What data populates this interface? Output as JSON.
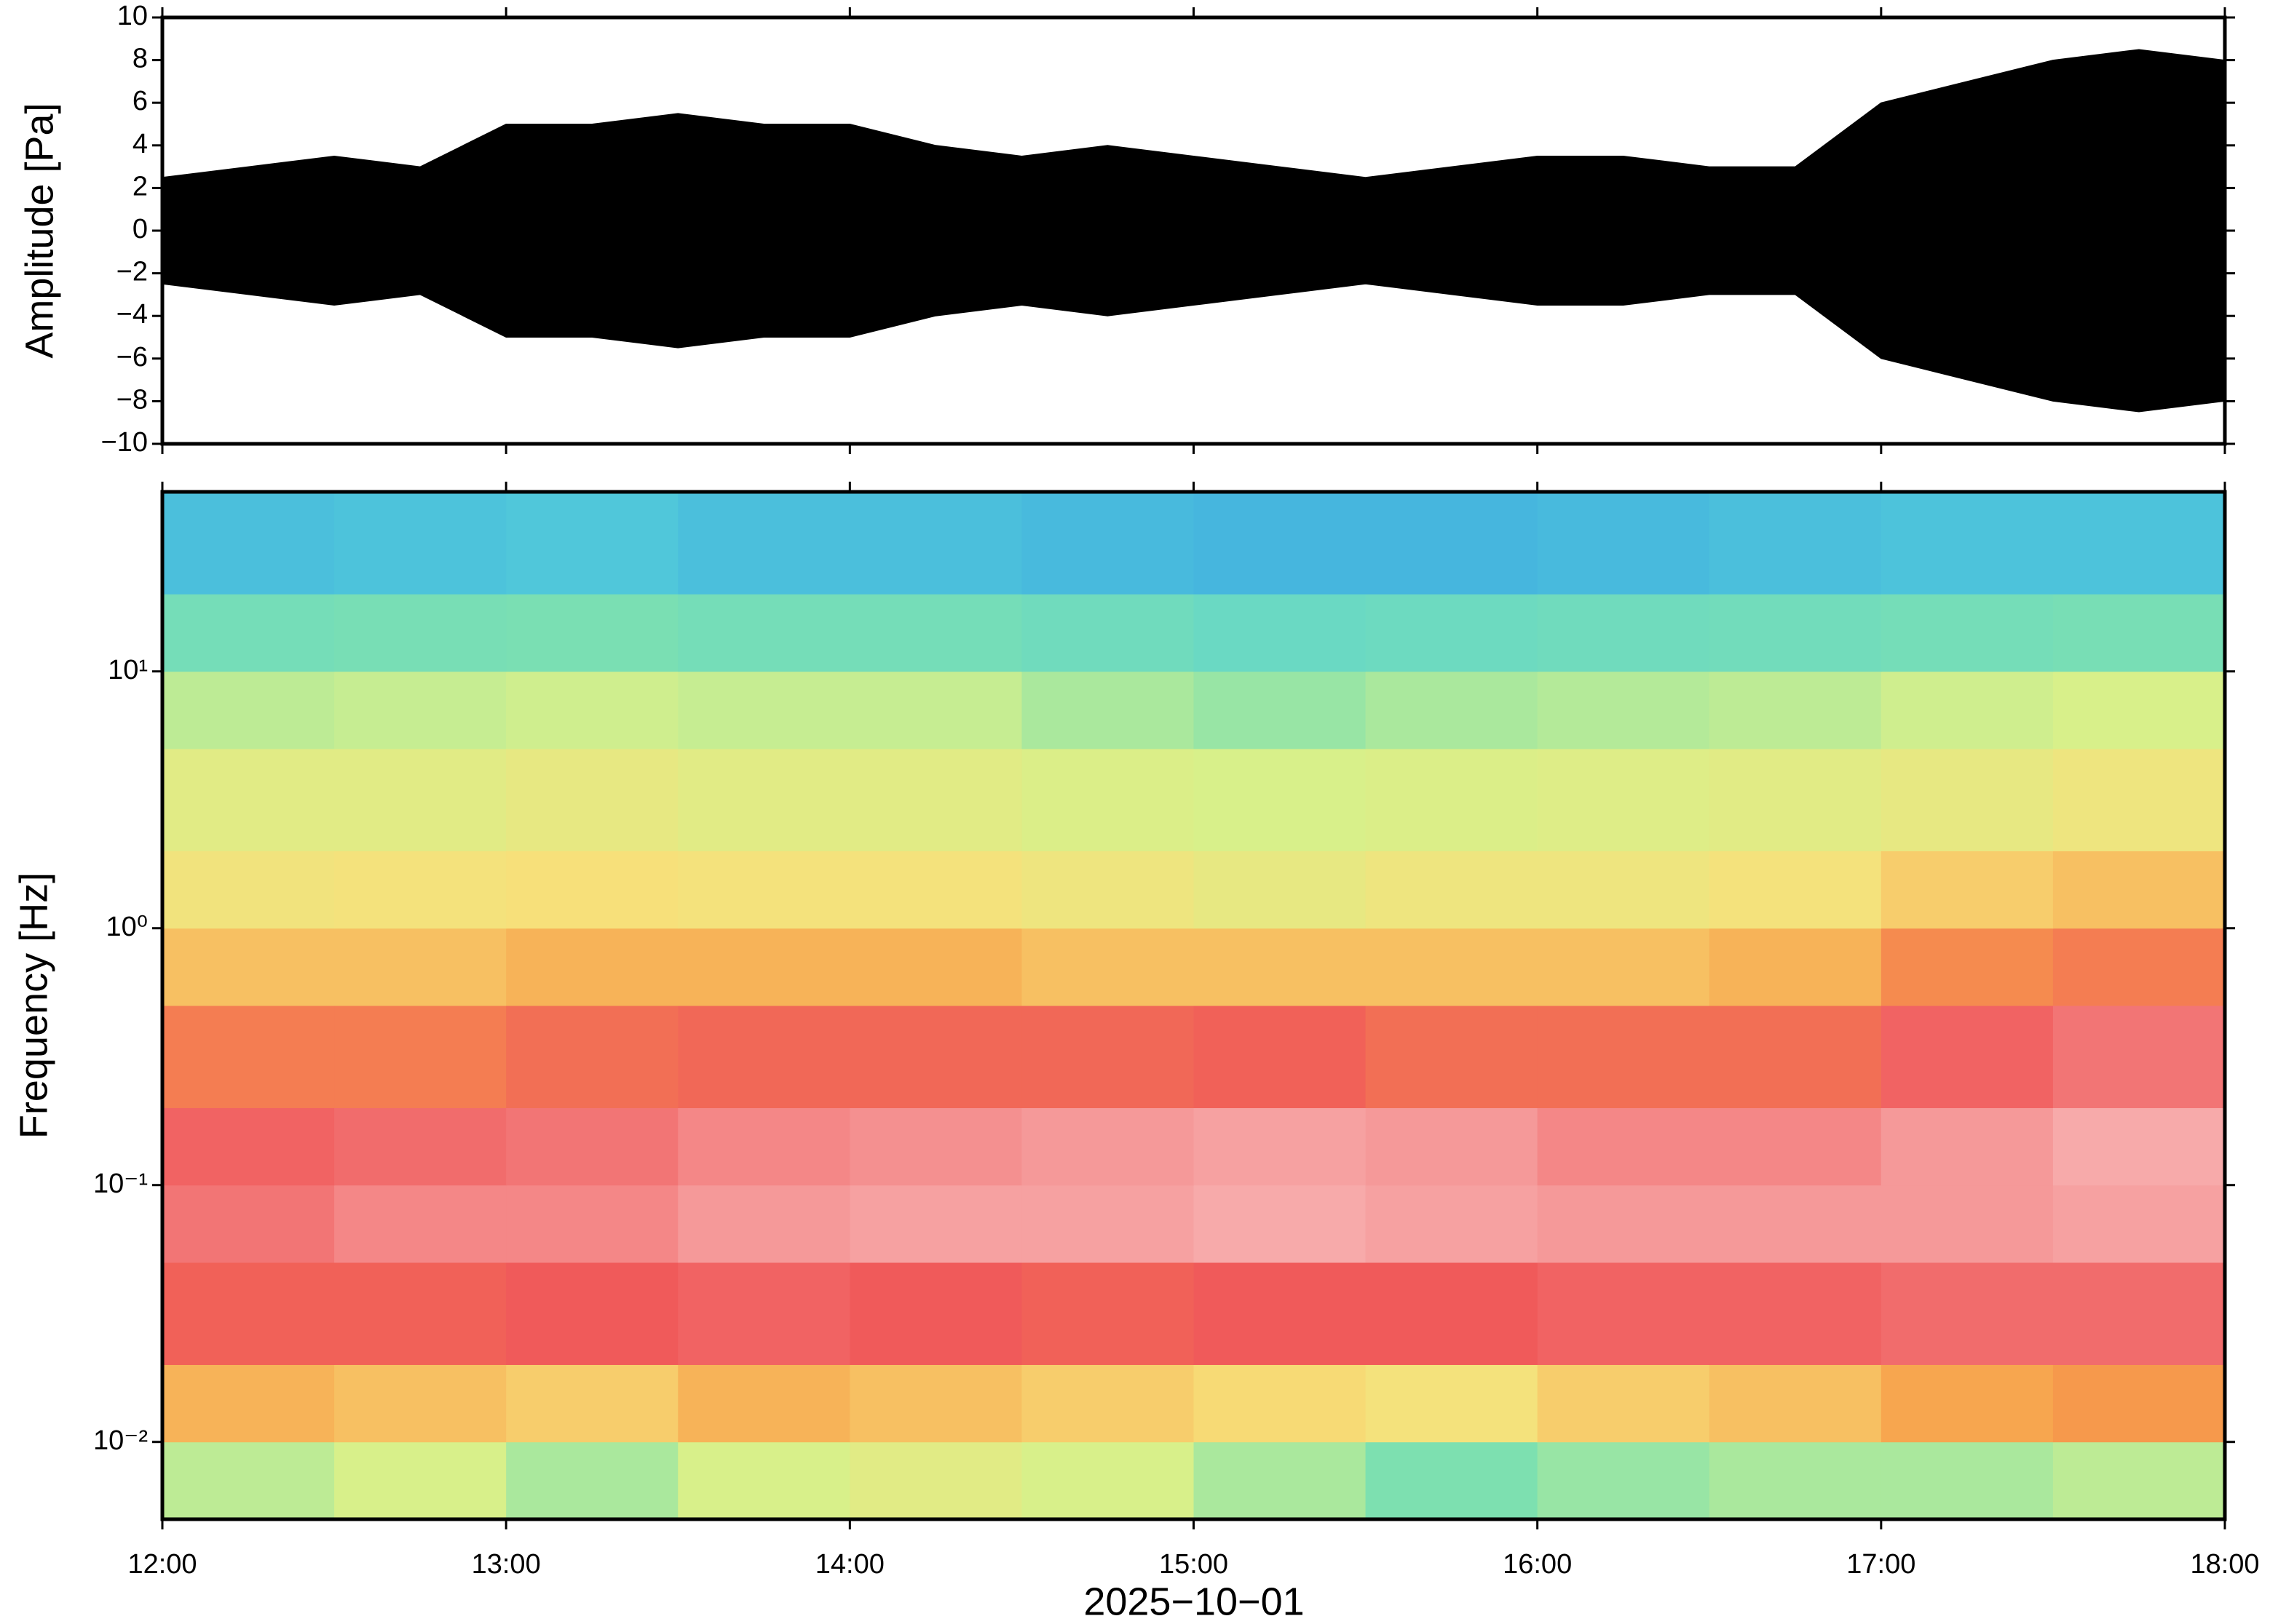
{
  "chart_data": [
    {
      "type": "envelope",
      "ylabel": "Amplitude [Pa]",
      "color": "#000000",
      "xlim": [
        12,
        18
      ],
      "xticks": [
        12,
        13,
        14,
        15,
        16,
        17,
        18
      ],
      "ylim": [
        -10,
        10
      ],
      "yticks": [
        {
          "value": -10,
          "label": "−10"
        },
        {
          "value": -8,
          "label": "−8"
        },
        {
          "value": -6,
          "label": "−6"
        },
        {
          "value": -4,
          "label": "−4"
        },
        {
          "value": -2,
          "label": "−2"
        },
        0,
        2,
        4,
        6,
        8,
        10
      ],
      "x": [
        12,
        12.25,
        12.5,
        12.75,
        13,
        13.25,
        13.5,
        13.75,
        14,
        14.25,
        14.5,
        14.75,
        15,
        15.25,
        15.5,
        15.75,
        16,
        16.25,
        16.5,
        16.75,
        17,
        17.25,
        17.5,
        17.75,
        18
      ],
      "upper": [
        2.5,
        3,
        3.5,
        3,
        5,
        5,
        5.5,
        5,
        5,
        4,
        3.5,
        4,
        3.5,
        3,
        2.5,
        3,
        3.5,
        3.5,
        3,
        3,
        6,
        7,
        8,
        8.5,
        8
      ],
      "lower": [
        -2.5,
        -3,
        -3.5,
        -3,
        -5,
        -5,
        -5.5,
        -5,
        -5,
        -4,
        -3.5,
        -4,
        -3.5,
        -3,
        -2.5,
        -3,
        -3.5,
        -3.5,
        -3,
        -3,
        -6,
        -7,
        -8,
        -8.5,
        -8
      ]
    },
    {
      "type": "heatmap",
      "ylabel": "Frequency [Hz]",
      "xlabel": "2025−10−01",
      "log_y": true,
      "xlim": [
        12,
        18
      ],
      "xticks": [
        {
          "value": 12,
          "label": "12:00"
        },
        {
          "value": 13,
          "label": "13:00"
        },
        {
          "value": 14,
          "label": "14:00"
        },
        {
          "value": 15,
          "label": "15:00"
        },
        {
          "value": 16,
          "label": "16:00"
        },
        {
          "value": 17,
          "label": "17:00"
        },
        {
          "value": 18,
          "label": "18:00"
        }
      ],
      "ylim": [
        0.005,
        50
      ],
      "yticks": [
        {
          "value": 0.01,
          "label": "10⁻²"
        },
        {
          "value": 0.1,
          "label": "10⁻¹"
        },
        {
          "value": 1,
          "label": "10⁰"
        },
        {
          "value": 10,
          "label": "10¹"
        }
      ],
      "x_edges": [
        12,
        12.5,
        13,
        13.5,
        14,
        14.5,
        15,
        15.5,
        16,
        16.5,
        17,
        17.5,
        18
      ],
      "y_edges": [
        0.005,
        0.01,
        0.02,
        0.05,
        0.1,
        0.2,
        0.5,
        1,
        2,
        5,
        10,
        20,
        50
      ],
      "zlim": [
        0,
        1
      ],
      "colormap": [
        {
          "value": 0,
          "color": "#0a0a80"
        },
        {
          "value": 0.15,
          "color": "#2f8fe6"
        },
        {
          "value": 0.3,
          "color": "#55d0d8"
        },
        {
          "value": 0.45,
          "color": "#7de0b0"
        },
        {
          "value": 0.55,
          "color": "#d8f08a"
        },
        {
          "value": 0.65,
          "color": "#f7e07a"
        },
        {
          "value": 0.75,
          "color": "#f7a04a"
        },
        {
          "value": 0.85,
          "color": "#f05a5a"
        },
        {
          "value": 1,
          "color": "#fbe0e0"
        }
      ],
      "z": [
        [
          0.52,
          0.55,
          0.5,
          0.55,
          0.58,
          0.55,
          0.5,
          0.45,
          0.48,
          0.5,
          0.5,
          0.52
        ],
        [
          0.72,
          0.7,
          0.68,
          0.72,
          0.7,
          0.68,
          0.66,
          0.64,
          0.68,
          0.7,
          0.74,
          0.76
        ],
        [
          0.84,
          0.84,
          0.85,
          0.86,
          0.85,
          0.84,
          0.85,
          0.85,
          0.86,
          0.86,
          0.87,
          0.87
        ],
        [
          0.88,
          0.9,
          0.9,
          0.92,
          0.93,
          0.93,
          0.94,
          0.93,
          0.92,
          0.92,
          0.92,
          0.93
        ],
        [
          0.86,
          0.87,
          0.88,
          0.9,
          0.91,
          0.92,
          0.93,
          0.92,
          0.9,
          0.9,
          0.92,
          0.94
        ],
        [
          0.8,
          0.8,
          0.82,
          0.83,
          0.83,
          0.83,
          0.84,
          0.82,
          0.82,
          0.82,
          0.86,
          0.88
        ],
        [
          0.7,
          0.7,
          0.72,
          0.72,
          0.72,
          0.7,
          0.7,
          0.7,
          0.7,
          0.72,
          0.78,
          0.8
        ],
        [
          0.63,
          0.64,
          0.65,
          0.64,
          0.64,
          0.62,
          0.6,
          0.62,
          0.62,
          0.64,
          0.68,
          0.7
        ],
        [
          0.58,
          0.58,
          0.6,
          0.58,
          0.58,
          0.56,
          0.55,
          0.56,
          0.57,
          0.58,
          0.6,
          0.62
        ],
        [
          0.52,
          0.53,
          0.54,
          0.53,
          0.53,
          0.5,
          0.48,
          0.5,
          0.51,
          0.52,
          0.54,
          0.55
        ],
        [
          0.42,
          0.43,
          0.44,
          0.42,
          0.42,
          0.4,
          0.38,
          0.39,
          0.4,
          0.41,
          0.42,
          0.43
        ],
        [
          0.26,
          0.27,
          0.28,
          0.26,
          0.26,
          0.25,
          0.24,
          0.24,
          0.25,
          0.26,
          0.27,
          0.27
        ]
      ]
    }
  ]
}
